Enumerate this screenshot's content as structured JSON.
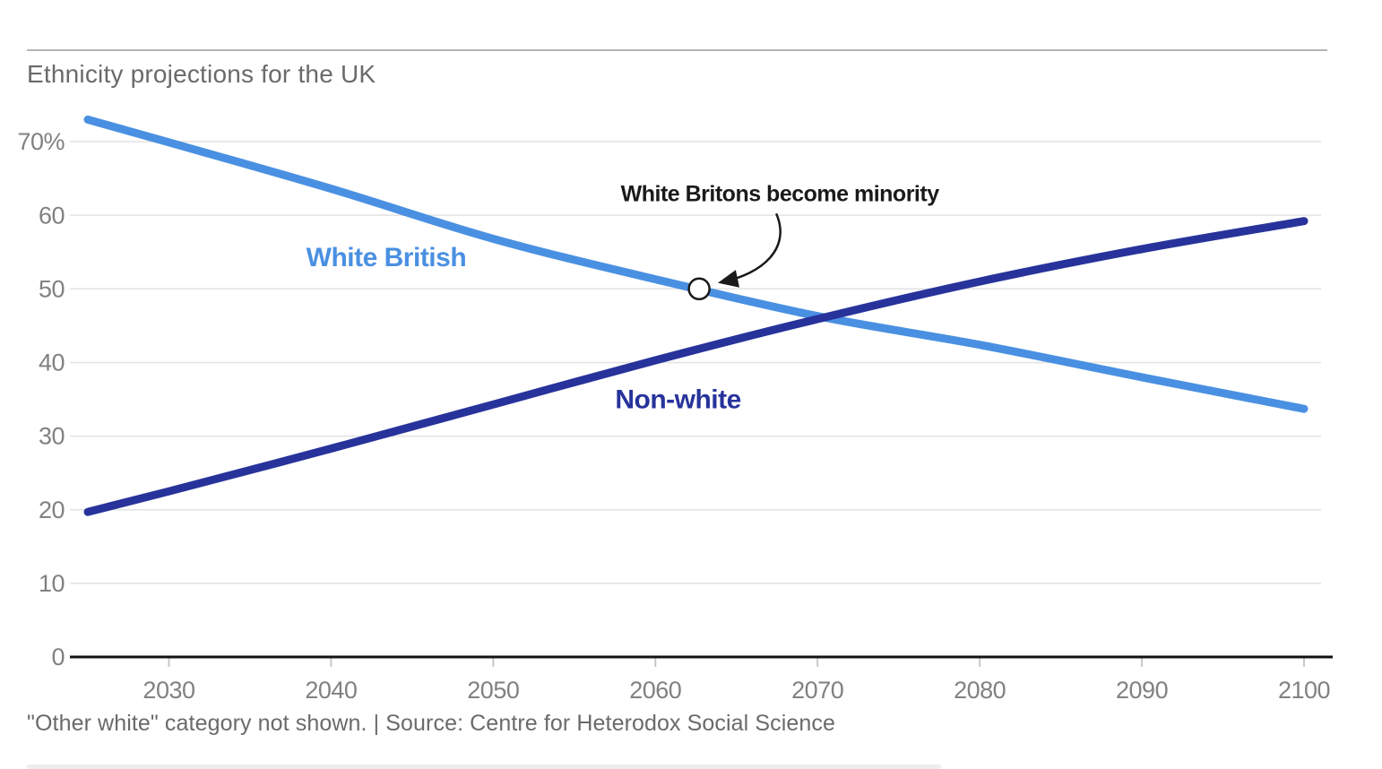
{
  "header": {
    "title": "Ethnicity projections for the UK"
  },
  "footer": {
    "text": "\"Other white\" category not shown. | Source: Centre for Heterodox Social Science"
  },
  "colors": {
    "white_british_line": "#4a90e2",
    "non_white_line": "#27339b",
    "gridline": "#e2e2e2",
    "axis": "#111111",
    "tick_mark": "#c8c8c8",
    "tick_text": "#818181",
    "muted_text": "#6a6a6a",
    "annotation": "#1a1a1a",
    "divider": "#b4b4b4"
  },
  "chart_data": {
    "type": "line",
    "title": "Ethnicity projections for the UK",
    "xlabel": "",
    "ylabel": "",
    "x": [
      2025,
      2030,
      2040,
      2050,
      2060,
      2070,
      2080,
      2090,
      2100
    ],
    "series": [
      {
        "name": "White British",
        "color": "#4a90e2",
        "values": [
          73.0,
          69.9,
          63.6,
          56.8,
          51.3,
          46.3,
          42.4,
          38.0,
          33.7
        ],
        "label_anchor": {
          "year": 2043.4,
          "value": 53.1
        }
      },
      {
        "name": "Non-white",
        "color": "#27339b",
        "values": [
          19.7,
          22.5,
          28.3,
          34.3,
          40.3,
          45.9,
          51.0,
          55.4,
          59.2
        ],
        "label_anchor": {
          "year": 2061.4,
          "value": 33.8
        }
      }
    ],
    "x_ticks": [
      {
        "value": 2030,
        "label": "2030"
      },
      {
        "value": 2040,
        "label": "2040"
      },
      {
        "value": 2050,
        "label": "2050"
      },
      {
        "value": 2060,
        "label": "2060"
      },
      {
        "value": 2070,
        "label": "2070"
      },
      {
        "value": 2080,
        "label": "2080"
      },
      {
        "value": 2090,
        "label": "2090"
      },
      {
        "value": 2100,
        "label": "2100"
      }
    ],
    "y_ticks": [
      {
        "value": 70,
        "label": "70%"
      },
      {
        "value": 60,
        "label": "60"
      },
      {
        "value": 50,
        "label": "50"
      },
      {
        "value": 40,
        "label": "40"
      },
      {
        "value": 30,
        "label": "30"
      },
      {
        "value": 20,
        "label": "20"
      },
      {
        "value": 10,
        "label": "10"
      },
      {
        "value": 0,
        "label": "0"
      }
    ],
    "xlim": [
      2025,
      2100
    ],
    "ylim": [
      0,
      75
    ],
    "grid": "horizontal",
    "legend": "inline-labels",
    "annotation": {
      "label": "White Britons become minority",
      "year": 2062.7,
      "value": 50
    }
  }
}
